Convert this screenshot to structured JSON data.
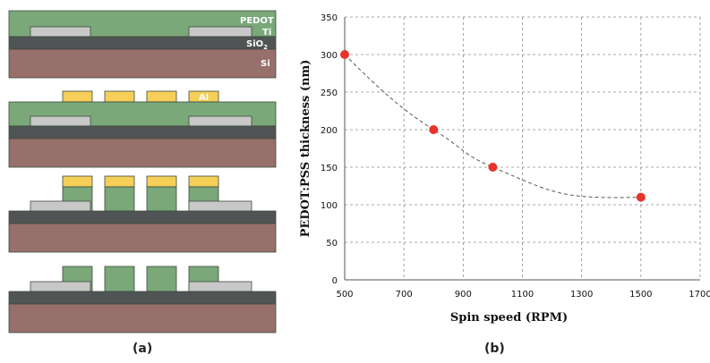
{
  "panel_a": {
    "labels": {
      "pedot": "PEDOT",
      "ti": "Ti",
      "sio2_base": "SiO",
      "sio2_sub": "2",
      "si": "Si",
      "al": "Al"
    },
    "colors": {
      "pedot": "#7aa879",
      "ti": "#c8c8c8",
      "sio2": "#505454",
      "si": "#97706b",
      "al": "#f5cf58"
    },
    "caption": "(a)"
  },
  "panel_b": {
    "caption": "(b)"
  },
  "chart_data": {
    "type": "scatter",
    "title": "",
    "xlabel": "Spin speed (RPM)",
    "ylabel": "PEDOT:PSS thickness (nm)",
    "xlim": [
      500,
      1700
    ],
    "ylim": [
      0,
      350
    ],
    "xticks": [
      500,
      700,
      900,
      1100,
      1300,
      1500,
      1700
    ],
    "yticks": [
      0,
      50,
      100,
      150,
      200,
      250,
      300,
      350
    ],
    "grid": true,
    "series": [
      {
        "x": [
          500,
          800,
          1000,
          1500
        ],
        "y": [
          300,
          200,
          150,
          110
        ],
        "color": "#e8332a"
      }
    ],
    "trendline": {
      "style": "dashed",
      "color": "#555555"
    }
  }
}
